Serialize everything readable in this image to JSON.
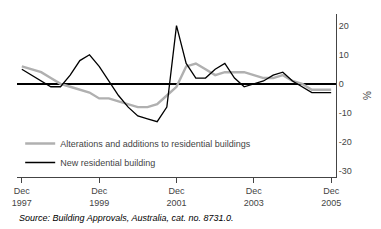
{
  "chart_data": {
    "type": "line",
    "ylabel": "%",
    "source": "Source: Building Approvals, Australia, cat. no. 8731.0.",
    "categories": [
      "Dec\n1997",
      null,
      null,
      null,
      null,
      null,
      null,
      null,
      "Dec\n1999",
      null,
      null,
      null,
      null,
      null,
      null,
      null,
      "Dec\n2001",
      null,
      null,
      null,
      null,
      null,
      null,
      null,
      "Dec\n2003",
      null,
      null,
      null,
      null,
      null,
      null,
      null,
      "Dec\n2005"
    ],
    "series": [
      {
        "name": "Alterations and additions to residential buildings",
        "color": "#b0b0b0",
        "values": [
          6,
          5,
          4,
          2,
          0,
          -1,
          -2,
          -3,
          -5,
          -5,
          -6,
          -7,
          -8,
          -8,
          -7,
          -4,
          -1,
          6,
          7,
          5,
          3,
          4,
          4,
          4,
          3,
          2,
          2,
          3,
          1,
          0,
          -2,
          -2,
          -2
        ]
      },
      {
        "name": "New residential building",
        "color": "#000000",
        "values": [
          5,
          3,
          1,
          -1,
          -1,
          3,
          8,
          10,
          6,
          1,
          -4,
          -8,
          -11,
          -12,
          -13,
          -8,
          20,
          7,
          2,
          2,
          5,
          7,
          2,
          -1,
          0,
          1,
          3,
          4,
          1,
          -1,
          -3,
          -3,
          -3
        ]
      }
    ],
    "ylim": [
      -32,
      24
    ],
    "yticks": [
      -30,
      -20,
      -10,
      0,
      10,
      20
    ],
    "grid": false,
    "legend": "lower left"
  }
}
